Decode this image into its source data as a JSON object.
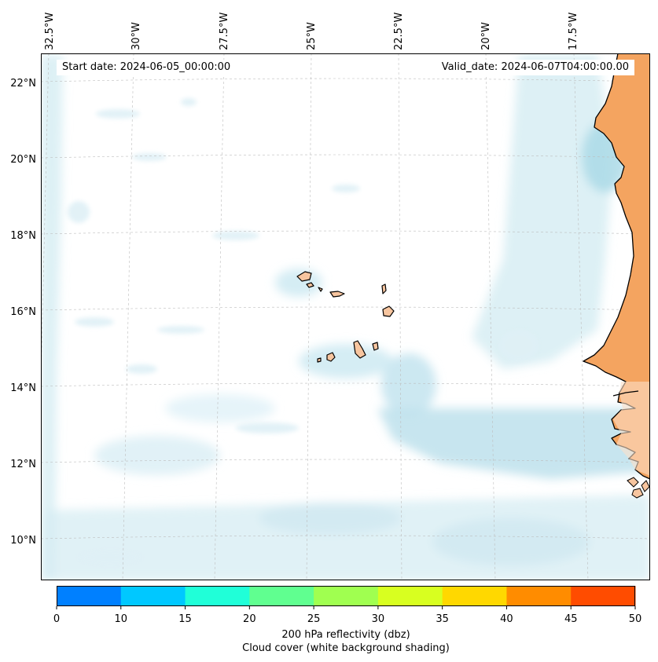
{
  "map": {
    "start_date_text": "Start date: 2024-06-05_00:00:00",
    "valid_date_text": "Valid_date: 2024-06-07T04:00:00.00",
    "lon_labels": [
      "32.5°W",
      "30°W",
      "27.5°W",
      "25°W",
      "22.5°W",
      "20°W",
      "17.5°W"
    ],
    "lat_labels": [
      "22°N",
      "20°N",
      "18°N",
      "16°N",
      "14°N",
      "12°N",
      "10°N"
    ],
    "colors": {
      "land": "#f4a460",
      "island_land": "#f7c59f",
      "cloud": "#a8d8e6",
      "coastline": "#000000",
      "gridline": "#bbbbbb"
    }
  },
  "colorbar": {
    "ticks": [
      "0",
      "10",
      "15",
      "20",
      "25",
      "30",
      "35",
      "40",
      "45",
      "50"
    ],
    "colors": [
      "#0080ff",
      "#00c8ff",
      "#20ffd8",
      "#60ff90",
      "#a0ff50",
      "#d8ff20",
      "#ffd800",
      "#ff8c00",
      "#ff4c00"
    ],
    "label_line1": "200 hPa reflectivity (dbz)",
    "label_line2": "Cloud cover (white background shading)"
  }
}
